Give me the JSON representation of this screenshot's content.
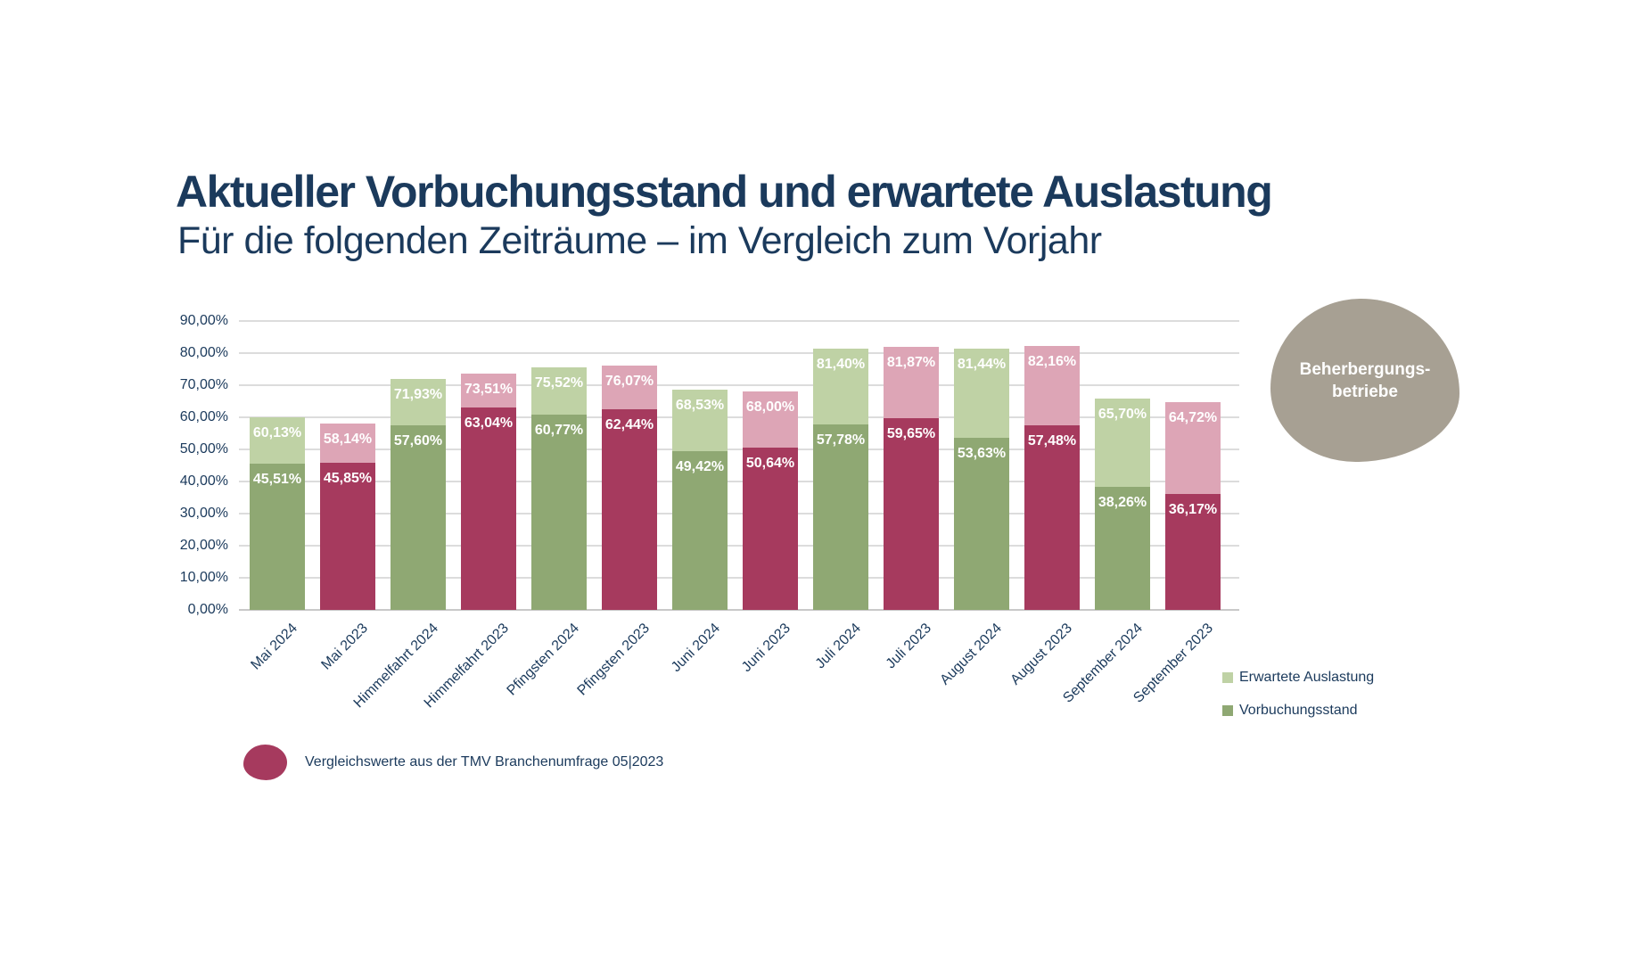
{
  "header": {
    "title": "Aktueller Vorbuchungsstand und erwartete Auslastung",
    "subtitle": "Für die folgenden Zeiträume – im Vergleich zum Vorjahr"
  },
  "chart_data": {
    "type": "bar",
    "stacked": true,
    "categories": [
      "Mai 2024",
      "Mai 2023",
      "Himmelfahrt 2024",
      "Himmelfahrt 2023",
      "Pfingsten 2024",
      "Pfingsten 2023",
      "Juni 2024",
      "Juni 2023",
      "Juli 2024",
      "Juli 2023",
      "August 2024",
      "August 2023",
      "September 2024",
      "September 2023"
    ],
    "series": [
      {
        "name": "Vorbuchungsstand",
        "values": [
          45.51,
          45.85,
          57.6,
          63.04,
          60.77,
          62.44,
          49.42,
          50.64,
          57.78,
          59.65,
          53.63,
          57.48,
          38.26,
          36.17
        ],
        "labels": [
          "45,51%",
          "45,85%",
          "57,60%",
          "63,04%",
          "60,77%",
          "62,44%",
          "49,42%",
          "50,64%",
          "57,78%",
          "59,65%",
          "53,63%",
          "57,48%",
          "38,26%",
          "36,17%"
        ]
      },
      {
        "name": "Erwartete Auslastung",
        "values": [
          60.13,
          58.14,
          71.93,
          73.51,
          75.52,
          76.07,
          68.53,
          68.0,
          81.4,
          81.87,
          81.44,
          82.16,
          65.7,
          64.72
        ],
        "labels": [
          "60,13%",
          "58,14%",
          "71,93%",
          "73,51%",
          "75,52%",
          "76,07%",
          "68,53%",
          "68,00%",
          "81,40%",
          "81,87%",
          "81,44%",
          "82,16%",
          "65,70%",
          "64,72%"
        ]
      }
    ],
    "bar_schemes": [
      "green",
      "magenta",
      "green",
      "magenta",
      "green",
      "magenta",
      "green",
      "magenta",
      "green",
      "magenta",
      "green",
      "magenta",
      "green",
      "magenta"
    ],
    "ylim": [
      0,
      90
    ],
    "y_tick_labels": [
      "0,00%",
      "10,00%",
      "20,00%",
      "30,00%",
      "40,00%",
      "50,00%",
      "60,00%",
      "70,00%",
      "80,00%",
      "90,00%"
    ],
    "grid": true,
    "legend_position": "bottom-right"
  },
  "legend": {
    "items": [
      {
        "label": "Erwartete Auslastung",
        "color_key": "light_green"
      },
      {
        "label": "Vorbuchungsstand",
        "color_key": "dark_green"
      }
    ]
  },
  "bubble": {
    "line1": "Beherbergungs-",
    "line2": "betriebe"
  },
  "note": {
    "text": "Vergleichswerte aus der TMV Branchenumfrage 05|2023"
  },
  "colors": {
    "navy": "#1b3a5c",
    "dark_green": "#8fa873",
    "light_green": "#bfd2a5",
    "dark_magenta": "#a63a5e",
    "light_pink": "#dda5b6",
    "taupe": "#a7a093",
    "gridline": "#dcdcdc",
    "axis_line": "#c9c9c9",
    "bar_label": "#ffffff"
  }
}
